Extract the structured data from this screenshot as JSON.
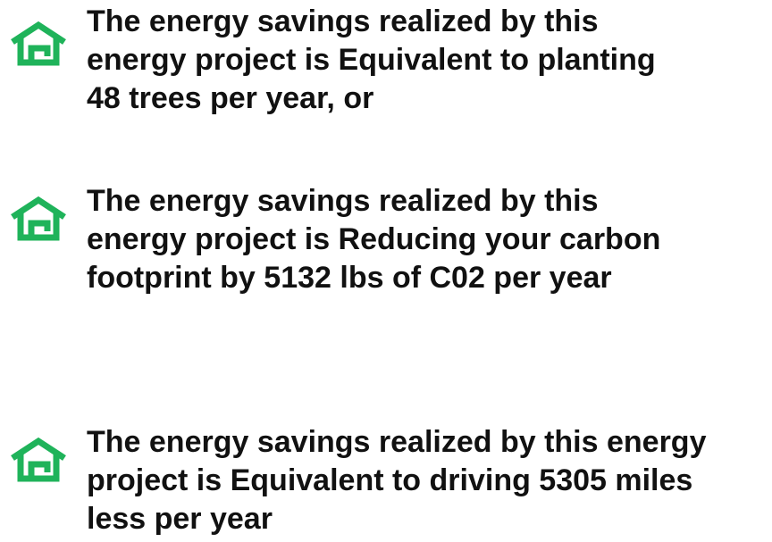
{
  "items": [
    {
      "lines": [
        "The energy savings realized by this",
        "energy project is Equivalent to planting",
        "48 trees per year, or"
      ]
    },
    {
      "lines": [
        "The energy savings realized by this",
        "energy project is Reducing your carbon",
        "footprint by 5132 lbs of C02 per year"
      ]
    },
    {
      "lines": [
        "The energy savings realized by this energy",
        "project is Equivalent to driving 5305 miles",
        "less per year"
      ]
    }
  ]
}
